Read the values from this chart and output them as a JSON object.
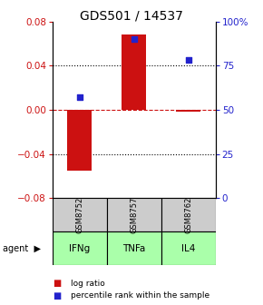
{
  "title": "GDS501 / 14537",
  "samples": [
    "GSM8752",
    "GSM8757",
    "GSM8762"
  ],
  "agents": [
    "IFNg",
    "TNFa",
    "IL4"
  ],
  "log_ratios": [
    -0.055,
    0.068,
    -0.002
  ],
  "percentile_ranks": [
    57,
    90,
    78
  ],
  "ylim_left": [
    -0.08,
    0.08
  ],
  "ylim_right": [
    0,
    100
  ],
  "left_yticks": [
    -0.08,
    -0.04,
    0,
    0.04,
    0.08
  ],
  "right_yticks": [
    0,
    25,
    50,
    75,
    100
  ],
  "right_yticklabels": [
    "0",
    "25",
    "50",
    "75",
    "100%"
  ],
  "bar_color": "#cc1111",
  "dot_color": "#2222cc",
  "bar_width": 0.45,
  "sample_bg_color": "#cccccc",
  "agent_bg_color": "#aaffaa",
  "title_fontsize": 10,
  "tick_fontsize": 7.5,
  "agent_label": "agent"
}
